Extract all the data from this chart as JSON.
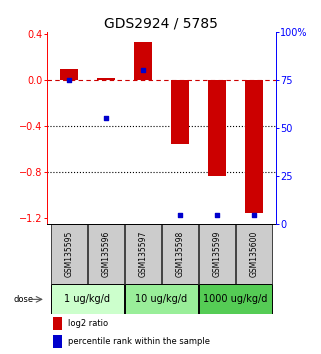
{
  "title": "GDS2924 / 5785",
  "samples": [
    "GSM135595",
    "GSM135596",
    "GSM135597",
    "GSM135598",
    "GSM135599",
    "GSM135600"
  ],
  "log2_ratio": [
    0.1,
    0.02,
    0.33,
    -0.55,
    -0.83,
    -1.15
  ],
  "percentile_rank": [
    75,
    55,
    80,
    5,
    5,
    5
  ],
  "bar_color": "#cc0000",
  "dot_color": "#0000cc",
  "ylim_left": [
    -1.25,
    0.42
  ],
  "ylim_right": [
    0,
    100
  ],
  "yticks_left": [
    0.4,
    0.0,
    -0.4,
    -0.8,
    -1.2
  ],
  "yticks_right": [
    100,
    75,
    50,
    25,
    0
  ],
  "hlines_dotted": [
    -0.4,
    -0.8
  ],
  "hline_dashed": 0.0,
  "dose_groups": [
    {
      "label": "1 ug/kg/d",
      "start": 0,
      "end": 2
    },
    {
      "label": "10 ug/kg/d",
      "start": 2,
      "end": 4
    },
    {
      "label": "1000 ug/kg/d",
      "start": 4,
      "end": 6
    }
  ],
  "dose_color_light": "#ccffcc",
  "dose_color_mid": "#99ee99",
  "dose_color_dark": "#55cc55",
  "dose_colors_list": [
    "#ccffcc",
    "#99ee99",
    "#55cc55"
  ],
  "legend_items": [
    {
      "color": "#cc0000",
      "label": "log2 ratio"
    },
    {
      "color": "#0000cc",
      "label": "percentile rank within the sample"
    }
  ],
  "bar_width": 0.5,
  "background_color": "#ffffff",
  "sample_box_color": "#cccccc",
  "title_fontsize": 10,
  "tick_fontsize": 7,
  "label_fontsize": 7,
  "dose_fontsize": 7,
  "sample_fontsize": 5.5
}
